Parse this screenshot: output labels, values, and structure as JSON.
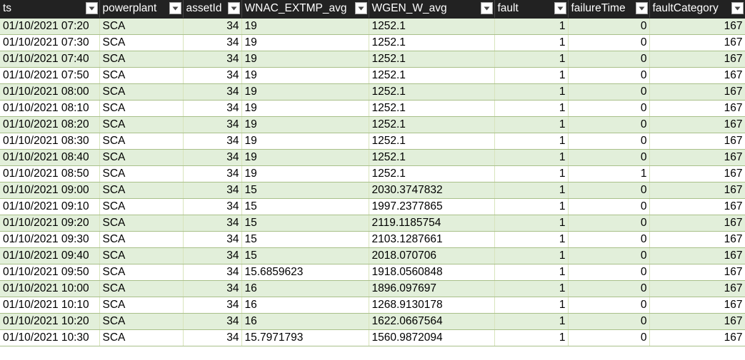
{
  "columns": [
    {
      "key": "ts",
      "label": "ts",
      "align": "left"
    },
    {
      "key": "powerplant",
      "label": "powerplant",
      "align": "left"
    },
    {
      "key": "assetId",
      "label": "assetId",
      "align": "right"
    },
    {
      "key": "wnac",
      "label": "WNAC_EXTMP_avg",
      "align": "left"
    },
    {
      "key": "wgen",
      "label": "WGEN_W_avg",
      "align": "left"
    },
    {
      "key": "fault",
      "label": "fault",
      "align": "right"
    },
    {
      "key": "failureTime",
      "label": "failureTime",
      "align": "right"
    },
    {
      "key": "faultCategory",
      "label": "faultCategory",
      "align": "right"
    }
  ],
  "filter_icon": "dropdown-arrow-icon",
  "colors": {
    "header_bg": "#222222",
    "header_text": "#ffffff",
    "band_row": "#e2efda",
    "plain_row": "#ffffff",
    "border": "#a9c08a"
  },
  "rows": [
    [
      "01/10/2021 07:20",
      "SCA",
      "34",
      "19",
      "1252.1",
      "1",
      "0",
      "167"
    ],
    [
      "01/10/2021 07:30",
      "SCA",
      "34",
      "19",
      "1252.1",
      "1",
      "0",
      "167"
    ],
    [
      "01/10/2021 07:40",
      "SCA",
      "34",
      "19",
      "1252.1",
      "1",
      "0",
      "167"
    ],
    [
      "01/10/2021 07:50",
      "SCA",
      "34",
      "19",
      "1252.1",
      "1",
      "0",
      "167"
    ],
    [
      "01/10/2021 08:00",
      "SCA",
      "34",
      "19",
      "1252.1",
      "1",
      "0",
      "167"
    ],
    [
      "01/10/2021 08:10",
      "SCA",
      "34",
      "19",
      "1252.1",
      "1",
      "0",
      "167"
    ],
    [
      "01/10/2021 08:20",
      "SCA",
      "34",
      "19",
      "1252.1",
      "1",
      "0",
      "167"
    ],
    [
      "01/10/2021 08:30",
      "SCA",
      "34",
      "19",
      "1252.1",
      "1",
      "0",
      "167"
    ],
    [
      "01/10/2021 08:40",
      "SCA",
      "34",
      "19",
      "1252.1",
      "1",
      "0",
      "167"
    ],
    [
      "01/10/2021 08:50",
      "SCA",
      "34",
      "19",
      "1252.1",
      "1",
      "1",
      "167"
    ],
    [
      "01/10/2021 09:00",
      "SCA",
      "34",
      "15",
      "2030.3747832",
      "1",
      "0",
      "167"
    ],
    [
      "01/10/2021 09:10",
      "SCA",
      "34",
      "15",
      "1997.2377865",
      "1",
      "0",
      "167"
    ],
    [
      "01/10/2021 09:20",
      "SCA",
      "34",
      "15",
      "2119.1185754",
      "1",
      "0",
      "167"
    ],
    [
      "01/10/2021 09:30",
      "SCA",
      "34",
      "15",
      "2103.1287661",
      "1",
      "0",
      "167"
    ],
    [
      "01/10/2021 09:40",
      "SCA",
      "34",
      "15",
      "2018.070706",
      "1",
      "0",
      "167"
    ],
    [
      "01/10/2021 09:50",
      "SCA",
      "34",
      "15.6859623",
      "1918.0560848",
      "1",
      "0",
      "167"
    ],
    [
      "01/10/2021 10:00",
      "SCA",
      "34",
      "16",
      "1896.097697",
      "1",
      "0",
      "167"
    ],
    [
      "01/10/2021 10:10",
      "SCA",
      "34",
      "16",
      "1268.9130178",
      "1",
      "0",
      "167"
    ],
    [
      "01/10/2021 10:20",
      "SCA",
      "34",
      "16",
      "1622.0667564",
      "1",
      "0",
      "167"
    ],
    [
      "01/10/2021 10:30",
      "SCA",
      "34",
      "15.7971793",
      "1560.9872094",
      "1",
      "0",
      "167"
    ]
  ]
}
